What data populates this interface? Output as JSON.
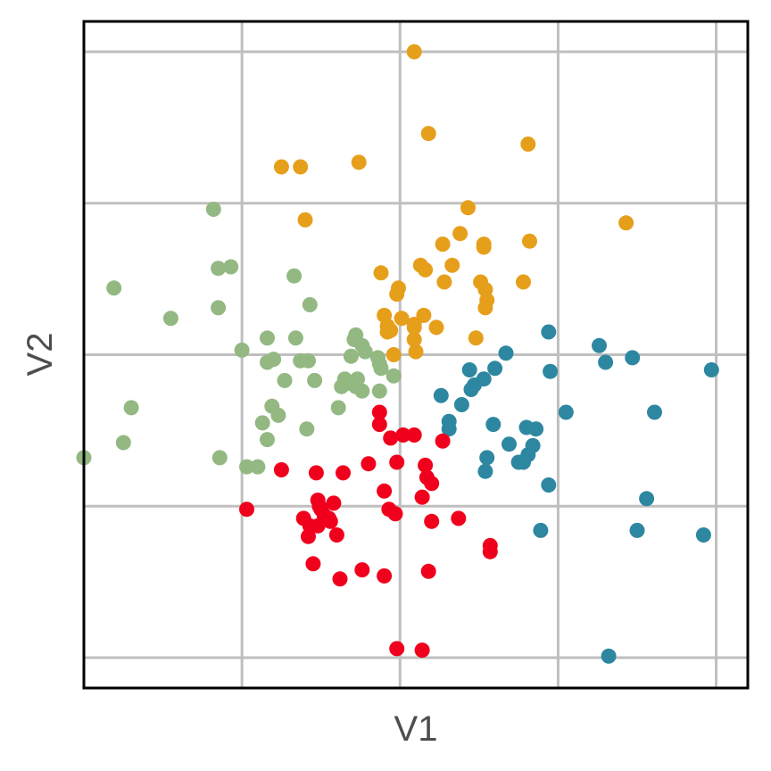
{
  "chart_data": {
    "type": "scatter",
    "title": "",
    "xlabel": "V1",
    "ylabel": "V2",
    "xlim": [
      -2.0,
      2.2
    ],
    "ylim": [
      -2.2,
      2.2
    ],
    "grid_x": [
      -2,
      -1,
      0,
      1,
      2
    ],
    "grid_y": [
      -2,
      -1,
      0,
      1,
      2
    ],
    "grid": true,
    "tick_labels": false,
    "legend": "none",
    "series": [
      {
        "color": "#E69F1B",
        "points": [
          [
            0.09,
            2.0
          ],
          [
            0.18,
            1.46
          ],
          [
            0.81,
            1.39
          ],
          [
            -0.75,
            1.24
          ],
          [
            -0.63,
            1.24
          ],
          [
            -0.26,
            1.27
          ],
          [
            -0.6,
            0.89
          ],
          [
            0.43,
            0.97
          ],
          [
            1.43,
            0.87
          ],
          [
            0.38,
            0.8
          ],
          [
            0.27,
            0.73
          ],
          [
            0.53,
            0.73
          ],
          [
            0.53,
            0.71
          ],
          [
            0.82,
            0.75
          ],
          [
            0.33,
            0.59
          ],
          [
            0.13,
            0.59
          ],
          [
            0.16,
            0.56
          ],
          [
            -0.12,
            0.54
          ],
          [
            0.28,
            0.48
          ],
          [
            0.51,
            0.48
          ],
          [
            -0.01,
            0.44
          ],
          [
            -0.02,
            0.4
          ],
          [
            0.78,
            0.48
          ],
          [
            0.54,
            0.43
          ],
          [
            0.55,
            0.36
          ],
          [
            0.54,
            0.31
          ],
          [
            -0.1,
            0.26
          ],
          [
            0.15,
            0.26
          ],
          [
            -0.08,
            0.19
          ],
          [
            0.01,
            0.24
          ],
          [
            0.23,
            0.18
          ],
          [
            0.09,
            0.2
          ],
          [
            -0.08,
            0.15
          ],
          [
            0.09,
            0.18
          ],
          [
            -0.06,
            0.16
          ],
          [
            0.09,
            0.1
          ],
          [
            0.48,
            0.11
          ],
          [
            -0.04,
            0.0
          ],
          [
            0.1,
            0.02
          ]
        ]
      },
      {
        "color": "#93B882",
        "points": [
          [
            -1.18,
            0.96
          ],
          [
            -1.81,
            0.44
          ],
          [
            -1.15,
            0.57
          ],
          [
            -1.07,
            0.58
          ],
          [
            -1.45,
            0.24
          ],
          [
            -0.67,
            0.52
          ],
          [
            -1.15,
            0.31
          ],
          [
            -0.57,
            0.33
          ],
          [
            -0.84,
            0.11
          ],
          [
            -0.66,
            0.11
          ],
          [
            -0.28,
            0.13
          ],
          [
            -0.29,
            0.1
          ],
          [
            -1.0,
            0.03
          ],
          [
            -0.24,
            0.06
          ],
          [
            -0.22,
            0.02
          ],
          [
            -0.14,
            -0.02
          ],
          [
            -0.84,
            -0.05
          ],
          [
            -0.8,
            -0.03
          ],
          [
            -0.63,
            -0.04
          ],
          [
            -0.58,
            -0.04
          ],
          [
            -0.31,
            -0.01
          ],
          [
            -0.13,
            -0.06
          ],
          [
            -0.12,
            -0.09
          ],
          [
            -0.73,
            -0.17
          ],
          [
            -0.54,
            -0.17
          ],
          [
            -0.35,
            -0.16
          ],
          [
            -0.37,
            -0.21
          ],
          [
            -0.28,
            -0.21
          ],
          [
            -0.24,
            -0.24
          ],
          [
            -0.34,
            -0.19
          ],
          [
            -0.27,
            -0.16
          ],
          [
            -0.04,
            -0.14
          ],
          [
            -0.13,
            -0.24
          ],
          [
            -0.81,
            -0.34
          ],
          [
            -0.39,
            -0.35
          ],
          [
            -1.7,
            -0.35
          ],
          [
            -0.77,
            -0.4
          ],
          [
            -0.87,
            -0.45
          ],
          [
            -0.59,
            -0.49
          ],
          [
            -0.84,
            -0.56
          ],
          [
            -1.75,
            -0.58
          ],
          [
            -2.0,
            -0.68
          ],
          [
            -1.14,
            -0.68
          ],
          [
            -0.97,
            -0.74
          ],
          [
            -0.9,
            -0.74
          ]
        ]
      },
      {
        "color": "#2E87A1",
        "points": [
          [
            0.94,
            0.15
          ],
          [
            1.26,
            0.06
          ],
          [
            0.67,
            0.01
          ],
          [
            1.3,
            -0.05
          ],
          [
            1.47,
            -0.02
          ],
          [
            1.97,
            -0.1
          ],
          [
            0.44,
            -0.1
          ],
          [
            0.6,
            -0.09
          ],
          [
            0.53,
            -0.16
          ],
          [
            0.47,
            -0.2
          ],
          [
            0.95,
            -0.11
          ],
          [
            0.26,
            -0.27
          ],
          [
            0.39,
            -0.33
          ],
          [
            0.45,
            -0.23
          ],
          [
            1.05,
            -0.38
          ],
          [
            1.61,
            -0.38
          ],
          [
            0.31,
            -0.44
          ],
          [
            0.31,
            -0.49
          ],
          [
            0.59,
            -0.46
          ],
          [
            0.8,
            -0.48
          ],
          [
            0.86,
            -0.49
          ],
          [
            0.69,
            -0.59
          ],
          [
            0.84,
            -0.6
          ],
          [
            0.81,
            -0.66
          ],
          [
            0.55,
            -0.68
          ],
          [
            0.75,
            -0.71
          ],
          [
            0.78,
            -0.71
          ],
          [
            0.54,
            -0.77
          ],
          [
            0.94,
            -0.86
          ],
          [
            1.56,
            -0.95
          ],
          [
            0.89,
            -1.16
          ],
          [
            1.5,
            -1.16
          ],
          [
            1.92,
            -1.19
          ],
          [
            1.32,
            -1.99
          ]
        ]
      },
      {
        "color": "#F0001C",
        "points": [
          [
            -0.13,
            -0.38
          ],
          [
            -0.13,
            -0.46
          ],
          [
            -0.06,
            -0.55
          ],
          [
            0.02,
            -0.53
          ],
          [
            0.09,
            -0.53
          ],
          [
            0.27,
            -0.57
          ],
          [
            -0.2,
            -0.72
          ],
          [
            -0.02,
            -0.71
          ],
          [
            0.16,
            -0.73
          ],
          [
            -0.75,
            -0.76
          ],
          [
            -0.53,
            -0.78
          ],
          [
            -0.36,
            -0.78
          ],
          [
            0.17,
            -0.81
          ],
          [
            0.2,
            -0.85
          ],
          [
            -0.1,
            -0.9
          ],
          [
            0.14,
            -0.94
          ],
          [
            -0.52,
            -0.96
          ],
          [
            -0.42,
            -0.98
          ],
          [
            -0.51,
            -1.0
          ],
          [
            -0.5,
            -1.02
          ],
          [
            -0.97,
            -1.02
          ],
          [
            -0.07,
            -1.02
          ],
          [
            -0.03,
            -1.05
          ],
          [
            -0.48,
            -1.06
          ],
          [
            -0.45,
            -1.08
          ],
          [
            -0.61,
            -1.08
          ],
          [
            -0.44,
            -1.1
          ],
          [
            0.37,
            -1.08
          ],
          [
            0.2,
            -1.1
          ],
          [
            -0.52,
            -1.13
          ],
          [
            -0.57,
            -1.13
          ],
          [
            -0.58,
            -1.2
          ],
          [
            -0.4,
            -1.19
          ],
          [
            0.57,
            -1.26
          ],
          [
            0.57,
            -1.3
          ],
          [
            -0.55,
            -1.38
          ],
          [
            -0.24,
            -1.42
          ],
          [
            0.18,
            -1.43
          ],
          [
            -0.1,
            -1.46
          ],
          [
            -0.38,
            -1.48
          ],
          [
            -0.02,
            -1.94
          ],
          [
            0.14,
            -1.95
          ]
        ]
      }
    ]
  }
}
